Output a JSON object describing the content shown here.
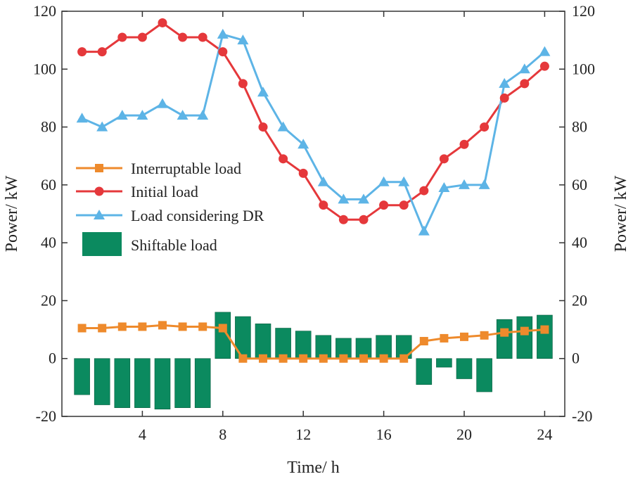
{
  "chart_data": {
    "type": "bar+line",
    "x": [
      1,
      2,
      3,
      4,
      5,
      6,
      7,
      8,
      9,
      10,
      11,
      12,
      13,
      14,
      15,
      16,
      17,
      18,
      19,
      20,
      21,
      22,
      23,
      24
    ],
    "xlabel": "Time/ h",
    "ylabel_left": "Power/ kW",
    "ylabel_right": "Power/ kW",
    "xlim": [
      0,
      25
    ],
    "ylim": [
      -20,
      120
    ],
    "xticks": [
      4,
      8,
      12,
      16,
      20,
      24
    ],
    "yticks": [
      -20,
      0,
      20,
      40,
      60,
      80,
      100,
      120
    ],
    "xtick_labels": [
      "4",
      "8",
      "12",
      "16",
      "20",
      "24"
    ],
    "ytick_labels": [
      "-20",
      "0",
      "20",
      "40",
      "60",
      "80",
      "100",
      "120"
    ],
    "legend_position": "center-left",
    "series": [
      {
        "name": "Interruptable load",
        "type": "line",
        "marker": "square",
        "color": "#ee8a2c",
        "values": [
          10.5,
          10.5,
          11,
          11,
          11.5,
          11,
          11,
          10.5,
          0,
          0,
          0,
          0,
          0,
          0,
          0,
          0,
          0,
          6,
          7,
          7.5,
          8,
          9,
          9.5,
          10
        ]
      },
      {
        "name": "Initial load",
        "type": "line",
        "marker": "circle",
        "color": "#e5383b",
        "values": [
          106,
          106,
          111,
          111,
          116,
          111,
          111,
          106,
          95,
          80,
          69,
          64,
          53,
          48,
          48,
          53,
          53,
          58,
          69,
          74,
          80,
          90,
          95,
          101
        ]
      },
      {
        "name": "Load considering DR",
        "type": "line",
        "marker": "triangle",
        "color": "#5db4e6",
        "values": [
          83,
          80,
          84,
          84,
          88,
          84,
          84,
          112,
          110,
          92,
          80,
          74,
          61,
          55,
          55,
          61,
          61,
          44,
          59,
          60,
          60,
          95,
          100,
          106
        ]
      },
      {
        "name": "Shiftable load",
        "type": "bar",
        "color": "#0b8a5f",
        "values": [
          -12.5,
          -16,
          -17,
          -17,
          -17.5,
          -17,
          -17,
          16,
          14.5,
          12,
          10.5,
          9.5,
          8,
          7,
          7,
          8,
          8,
          -9,
          -3,
          -7,
          -11.5,
          13.5,
          14.5,
          15
        ]
      }
    ]
  }
}
